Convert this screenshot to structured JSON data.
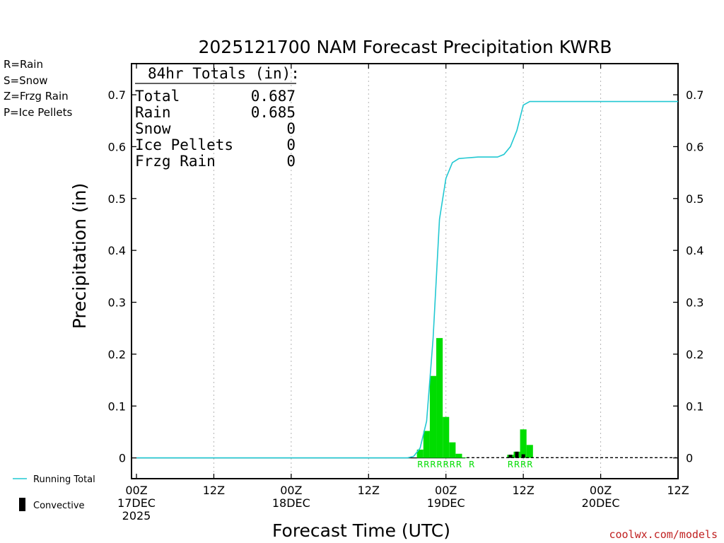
{
  "title": "2025121700 NAM Forecast Precipitation KWRB",
  "precip_types": [
    {
      "label": "R=Rain",
      "color": "#22cc22"
    },
    {
      "label": "S=Snow",
      "color": "#3c50e6"
    },
    {
      "label": "Z=Frzg Rain",
      "color": "#f08c3c"
    },
    {
      "label": "P=Ice Pellets",
      "color": "#e6288c"
    }
  ],
  "totals_box": {
    "header": "84hr Totals (in):",
    "rows": [
      {
        "label": "Total",
        "value": "0.687"
      },
      {
        "label": "Rain",
        "value": "0.685"
      },
      {
        "label": "Snow",
        "value": "0"
      },
      {
        "label": "Ice Pellets",
        "value": "0"
      },
      {
        "label": "Frzg Rain",
        "value": "0"
      }
    ]
  },
  "legend": {
    "running_total": "Running Total",
    "convective": "Convective"
  },
  "credit": "coolwx.com/models",
  "colors": {
    "rain": "#00dd00",
    "running_total": "#22c8d2",
    "convective": "#000000",
    "grid": "#b4b4b4"
  },
  "chart_data": {
    "type": "bar",
    "title": "2025121700 NAM Forecast Precipitation KWRB",
    "xlabel": "Forecast Time (UTC)",
    "ylabel": "Precipitation (in)",
    "ylim": [
      -0.04,
      0.76
    ],
    "xlim_hours": [
      0,
      84
    ],
    "y_ticks": [
      0,
      0.1,
      0.2,
      0.3,
      0.4,
      0.5,
      0.6,
      0.7
    ],
    "y_tick_labels": [
      "0",
      "0.1",
      "0.2",
      "0.3",
      "0.4",
      "0.5",
      "0.6",
      "0.7"
    ],
    "x_ticks": [
      {
        "hour": 0,
        "lines": [
          "00Z",
          "17DEC",
          "2025"
        ]
      },
      {
        "hour": 12,
        "lines": [
          "12Z"
        ]
      },
      {
        "hour": 24,
        "lines": [
          "00Z",
          "18DEC"
        ]
      },
      {
        "hour": 36,
        "lines": [
          "12Z"
        ]
      },
      {
        "hour": 48,
        "lines": [
          "00Z",
          "19DEC"
        ]
      },
      {
        "hour": 60,
        "lines": [
          "12Z"
        ]
      },
      {
        "hour": 72,
        "lines": [
          "00Z",
          "20DEC"
        ]
      },
      {
        "hour": 84,
        "lines": [
          "12Z"
        ]
      }
    ],
    "grid": "vertical dotted",
    "bars_rain": [
      {
        "hour": 44,
        "value": 0.016
      },
      {
        "hour": 45,
        "value": 0.052
      },
      {
        "hour": 46,
        "value": 0.158
      },
      {
        "hour": 47,
        "value": 0.231
      },
      {
        "hour": 48,
        "value": 0.079
      },
      {
        "hour": 49,
        "value": 0.03
      },
      {
        "hour": 50,
        "value": 0.008
      },
      {
        "hour": 51,
        "value": 0.001
      },
      {
        "hour": 58,
        "value": 0.006
      },
      {
        "hour": 59,
        "value": 0.012
      },
      {
        "hour": 60,
        "value": 0.055
      },
      {
        "hour": 61,
        "value": 0.025
      }
    ],
    "bars_convective": [
      {
        "hour": 58,
        "value": 0.006
      },
      {
        "hour": 59,
        "value": 0.012
      },
      {
        "hour": 60,
        "value": 0.007
      }
    ],
    "running_total": {
      "name": "Running Total",
      "hours": [
        0,
        42,
        43,
        44,
        45,
        46,
        47,
        48,
        49,
        50,
        51,
        52,
        53,
        54,
        55,
        56,
        57,
        58,
        59,
        60,
        61,
        84
      ],
      "values": [
        0,
        0,
        0.003,
        0.019,
        0.071,
        0.229,
        0.46,
        0.539,
        0.569,
        0.577,
        0.578,
        0.579,
        0.58,
        0.58,
        0.58,
        0.58,
        0.585,
        0.6,
        0.631,
        0.68,
        0.687,
        0.687
      ]
    },
    "ptype_markers": [
      {
        "hour": 44,
        "label": "R"
      },
      {
        "hour": 45,
        "label": "R"
      },
      {
        "hour": 46,
        "label": "R"
      },
      {
        "hour": 47,
        "label": "R"
      },
      {
        "hour": 48,
        "label": "R"
      },
      {
        "hour": 49,
        "label": "R"
      },
      {
        "hour": 50,
        "label": "R"
      },
      {
        "hour": 52,
        "label": "R"
      },
      {
        "hour": 58,
        "label": "R"
      },
      {
        "hour": 59,
        "label": "R"
      },
      {
        "hour": 60,
        "label": "R"
      },
      {
        "hour": 61,
        "label": "R"
      }
    ]
  }
}
